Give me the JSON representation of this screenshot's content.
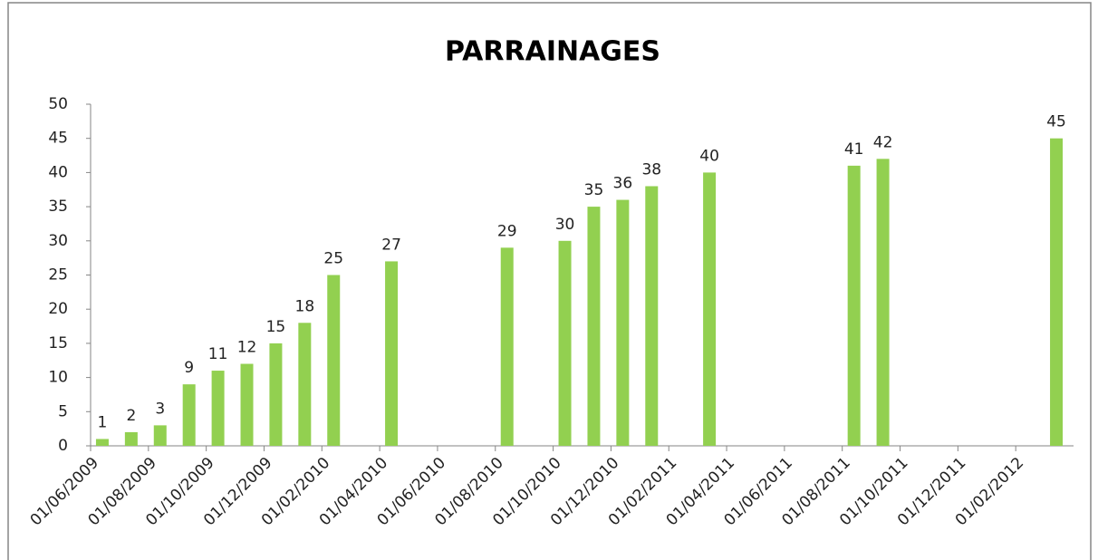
{
  "chart_data": {
    "type": "bar",
    "title": "PARRAINAGES",
    "x": [
      "01/06/2009",
      "01/07/2009",
      "01/08/2009",
      "01/09/2009",
      "01/10/2009",
      "01/11/2009",
      "01/12/2009",
      "01/01/2010",
      "01/02/2010",
      "01/04/2010",
      "01/08/2010",
      "01/10/2010",
      "01/11/2010",
      "01/12/2010",
      "01/01/2011",
      "01/03/2011",
      "01/08/2011",
      "01/09/2011",
      "01/03/2012"
    ],
    "values": [
      1,
      2,
      3,
      9,
      11,
      12,
      15,
      18,
      25,
      27,
      29,
      30,
      35,
      36,
      38,
      40,
      41,
      42,
      45
    ],
    "color": "#92d050",
    "xlim": [
      "01/06/2009",
      "01/04/2012"
    ],
    "xticks": [
      "01/06/2009",
      "01/08/2009",
      "01/10/2009",
      "01/12/2009",
      "01/02/2010",
      "01/04/2010",
      "01/06/2010",
      "01/08/2010",
      "01/10/2010",
      "01/12/2010",
      "01/02/2011",
      "01/04/2011",
      "01/06/2011",
      "01/08/2011",
      "01/10/2011",
      "01/12/2011",
      "01/02/2012"
    ],
    "ylim": [
      0,
      50
    ],
    "yticks": [
      0,
      5,
      10,
      15,
      20,
      25,
      30,
      35,
      40,
      45,
      50
    ],
    "grid": false
  }
}
